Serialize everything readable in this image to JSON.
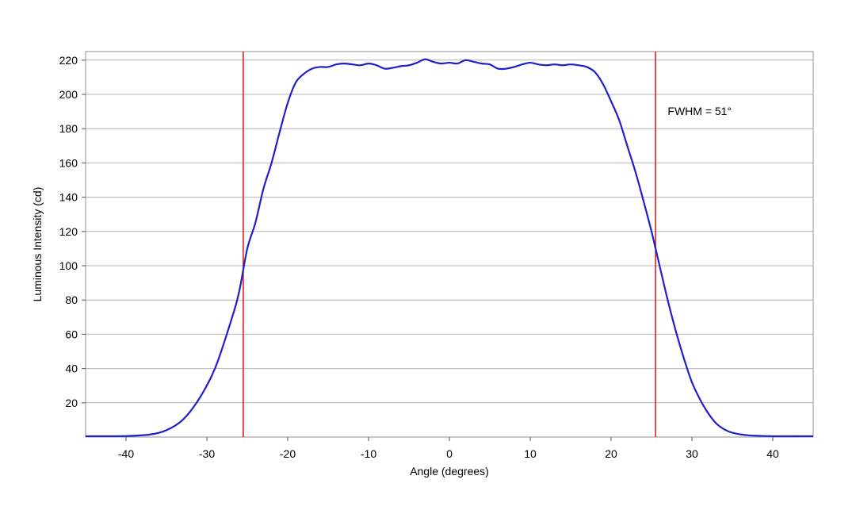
{
  "chart_data": {
    "type": "line",
    "title": "",
    "xlabel": "Angle (degrees)",
    "ylabel": "Luminous Intensity (cd)",
    "xlim": [
      -45,
      45
    ],
    "ylim": [
      0,
      225
    ],
    "x_ticks": [
      -40,
      -30,
      -20,
      -10,
      0,
      10,
      20,
      30,
      40
    ],
    "y_ticks": [
      20,
      40,
      60,
      80,
      100,
      120,
      140,
      160,
      180,
      200,
      220
    ],
    "grid": "horizontal",
    "series": [
      {
        "color": "#1f1fcc",
        "points": [
          [
            -45,
            0.5
          ],
          [
            -40,
            0.6
          ],
          [
            -37,
            1.5
          ],
          [
            -35,
            4
          ],
          [
            -33,
            10
          ],
          [
            -31,
            22
          ],
          [
            -29,
            40
          ],
          [
            -27,
            68
          ],
          [
            -26,
            85
          ],
          [
            -25,
            110
          ],
          [
            -24,
            125
          ],
          [
            -23,
            145
          ],
          [
            -22,
            160
          ],
          [
            -21,
            178
          ],
          [
            -20,
            195
          ],
          [
            -19,
            207
          ],
          [
            -18,
            212
          ],
          [
            -17,
            215
          ],
          [
            -16,
            216
          ],
          [
            -15,
            216
          ],
          [
            -14,
            217.5
          ],
          [
            -13,
            218
          ],
          [
            -12,
            217.5
          ],
          [
            -11,
            217
          ],
          [
            -10,
            218
          ],
          [
            -9,
            217
          ],
          [
            -8,
            215
          ],
          [
            -7,
            215.5
          ],
          [
            -6,
            216.5
          ],
          [
            -5,
            217
          ],
          [
            -4,
            218.5
          ],
          [
            -3,
            220.5
          ],
          [
            -2,
            219
          ],
          [
            -1,
            218
          ],
          [
            0,
            218.5
          ],
          [
            1,
            218
          ],
          [
            2,
            220
          ],
          [
            3,
            219
          ],
          [
            4,
            218
          ],
          [
            5,
            217.5
          ],
          [
            6,
            215
          ],
          [
            7,
            215
          ],
          [
            8,
            216
          ],
          [
            9,
            217.5
          ],
          [
            10,
            218.5
          ],
          [
            11,
            217.5
          ],
          [
            12,
            217
          ],
          [
            13,
            217.5
          ],
          [
            14,
            217
          ],
          [
            15,
            217.5
          ],
          [
            16,
            217
          ],
          [
            17,
            216
          ],
          [
            18,
            213
          ],
          [
            19,
            206
          ],
          [
            20,
            196
          ],
          [
            21,
            185
          ],
          [
            22,
            170
          ],
          [
            23,
            155
          ],
          [
            24,
            138
          ],
          [
            25,
            120
          ],
          [
            26,
            100
          ],
          [
            27,
            80
          ],
          [
            28,
            62
          ],
          [
            29,
            46
          ],
          [
            30,
            32
          ],
          [
            31,
            22
          ],
          [
            32,
            14
          ],
          [
            33,
            8
          ],
          [
            34,
            4.5
          ],
          [
            35,
            2.5
          ],
          [
            37,
            1
          ],
          [
            40,
            0.5
          ],
          [
            45,
            0.5
          ]
        ]
      }
    ],
    "reference_lines": [
      {
        "orientation": "vertical",
        "x": -25.5,
        "color": "#e02020"
      },
      {
        "orientation": "vertical",
        "x": 25.5,
        "color": "#e02020"
      }
    ],
    "annotations": [
      {
        "text": "FWHM = 51°",
        "x": 27,
        "y": 188
      }
    ]
  }
}
